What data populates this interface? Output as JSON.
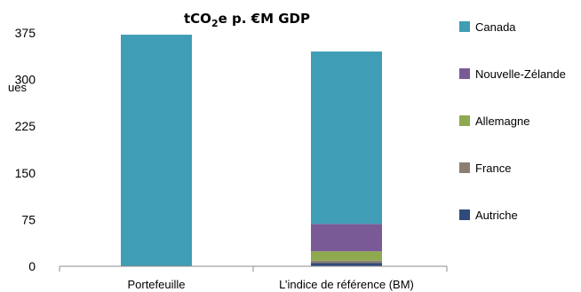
{
  "chart_data": {
    "type": "bar",
    "stacked": true,
    "title_main": "tCO",
    "title_sub": "2",
    "title_rest": "e p. €M GDP",
    "ylabel_visible": "ues",
    "categories": [
      "Portefeuille",
      "L’indice de référence (BM)"
    ],
    "ylim": [
      0,
      375
    ],
    "yticks": [
      0,
      75,
      150,
      225,
      300,
      375
    ],
    "series": [
      {
        "name": "Autriche",
        "color": "#2f4b7c",
        "values": [
          0,
          5
        ]
      },
      {
        "name": "France",
        "color": "#8a7f72",
        "values": [
          0,
          4
        ]
      },
      {
        "name": "Allemagne",
        "color": "#8faa4e",
        "values": [
          0,
          15
        ]
      },
      {
        "name": "Nouvelle-Zélande",
        "color": "#7a5a96",
        "values": [
          0,
          44
        ]
      },
      {
        "name": "Canada",
        "color": "#3f9db5",
        "values": [
          372,
          277
        ]
      }
    ],
    "legend": {
      "position": "right",
      "order": [
        "Canada",
        "Nouvelle-Zélande",
        "Allemagne",
        "France",
        "Autriche"
      ]
    }
  }
}
